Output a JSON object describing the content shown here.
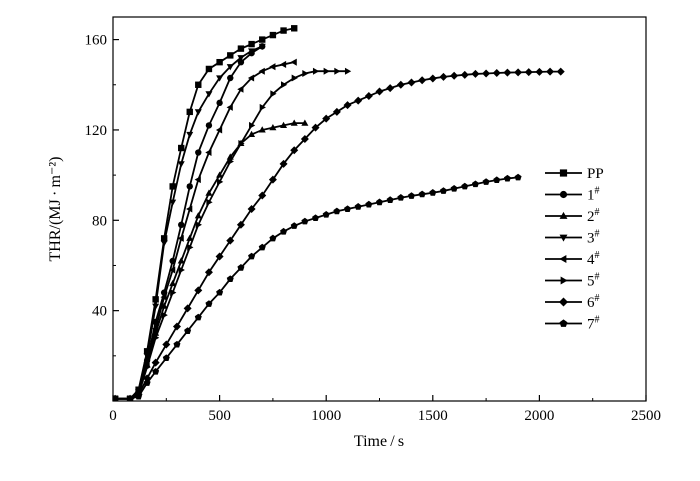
{
  "chart_data": {
    "type": "line",
    "title": "",
    "xlabel": "Time / s",
    "ylabel": "THR/(MJ · m⁻²)",
    "xlim": [
      0,
      2500
    ],
    "ylim": [
      0,
      170
    ],
    "xticks": [
      0,
      500,
      1000,
      1500,
      2000,
      2500
    ],
    "yticks": [
      40,
      80,
      120,
      160
    ],
    "grid": false,
    "legend_position": "right",
    "series": [
      {
        "name": "PP",
        "base": "PP",
        "sup": "",
        "marker": "square",
        "x": [
          10,
          80,
          120,
          160,
          200,
          240,
          280,
          320,
          360,
          400,
          450,
          500,
          550,
          600,
          650,
          700,
          750,
          800,
          850
        ],
        "y": [
          1,
          1,
          5,
          22,
          45,
          72,
          95,
          112,
          128,
          140,
          147,
          150,
          153,
          156,
          158,
          160,
          162,
          164,
          165
        ]
      },
      {
        "name": "1#",
        "base": "1",
        "sup": "#",
        "marker": "circle",
        "x": [
          10,
          80,
          120,
          160,
          200,
          240,
          280,
          320,
          360,
          400,
          450,
          500,
          550,
          600,
          650,
          700
        ],
        "y": [
          1,
          1,
          4,
          18,
          35,
          48,
          62,
          78,
          95,
          110,
          122,
          132,
          143,
          150,
          154,
          157
        ]
      },
      {
        "name": "2#",
        "base": "2",
        "sup": "#",
        "marker": "triangle-up",
        "x": [
          10,
          80,
          120,
          160,
          200,
          240,
          280,
          320,
          360,
          400,
          450,
          500,
          550,
          600,
          650,
          700,
          750,
          800,
          850,
          900
        ],
        "y": [
          1,
          1,
          4,
          16,
          30,
          42,
          52,
          62,
          72,
          82,
          92,
          100,
          108,
          114,
          118,
          120,
          121,
          122,
          123,
          123
        ]
      },
      {
        "name": "3#",
        "base": "3",
        "sup": "#",
        "marker": "triangle-down",
        "x": [
          10,
          80,
          120,
          160,
          200,
          240,
          280,
          320,
          360,
          400,
          450,
          500,
          550,
          600,
          650,
          700
        ],
        "y": [
          1,
          1,
          4,
          20,
          42,
          70,
          88,
          105,
          118,
          128,
          136,
          143,
          148,
          152,
          155,
          157
        ]
      },
      {
        "name": "4#",
        "base": "4",
        "sup": "#",
        "marker": "triangle-left",
        "x": [
          10,
          80,
          120,
          160,
          200,
          240,
          280,
          320,
          360,
          400,
          450,
          500,
          550,
          600,
          650,
          700,
          750,
          800,
          850
        ],
        "y": [
          1,
          1,
          4,
          17,
          32,
          46,
          58,
          72,
          85,
          98,
          110,
          120,
          130,
          138,
          143,
          146,
          148,
          149,
          150
        ]
      },
      {
        "name": "5#",
        "base": "5",
        "sup": "#",
        "marker": "triangle-right",
        "x": [
          10,
          80,
          120,
          160,
          200,
          240,
          280,
          320,
          360,
          400,
          450,
          500,
          550,
          600,
          650,
          700,
          750,
          800,
          850,
          900,
          950,
          1000,
          1050,
          1100
        ],
        "y": [
          1,
          1,
          3,
          15,
          28,
          38,
          48,
          58,
          68,
          78,
          88,
          97,
          106,
          114,
          122,
          130,
          136,
          140,
          143,
          145,
          146,
          146,
          146,
          146
        ]
      },
      {
        "name": "6#",
        "base": "6",
        "sup": "#",
        "marker": "diamond",
        "x": [
          10,
          80,
          120,
          160,
          200,
          250,
          300,
          350,
          400,
          450,
          500,
          550,
          600,
          650,
          700,
          750,
          800,
          850,
          900,
          950,
          1000,
          1050,
          1100,
          1150,
          1200,
          1250,
          1300,
          1350,
          1400,
          1450,
          1500,
          1550,
          1600,
          1650,
          1700,
          1750,
          1800,
          1850,
          1900,
          1950,
          2000,
          2050,
          2100
        ],
        "y": [
          1,
          1,
          3,
          10,
          17,
          25,
          33,
          41,
          49,
          57,
          64,
          71,
          78,
          85,
          91,
          98,
          105,
          111,
          116,
          121,
          125,
          128,
          131,
          133,
          135,
          137,
          138.5,
          140,
          141,
          142,
          142.8,
          143.5,
          144,
          144.4,
          144.8,
          145,
          145.2,
          145.4,
          145.5,
          145.6,
          145.7,
          145.8,
          145.8
        ]
      },
      {
        "name": "7#",
        "base": "7",
        "sup": "#",
        "marker": "pentagon",
        "x": [
          10,
          80,
          120,
          160,
          200,
          250,
          300,
          350,
          400,
          450,
          500,
          550,
          600,
          650,
          700,
          750,
          800,
          850,
          900,
          950,
          1000,
          1050,
          1100,
          1150,
          1200,
          1250,
          1300,
          1350,
          1400,
          1450,
          1500,
          1550,
          1600,
          1650,
          1700,
          1750,
          1800,
          1850,
          1900
        ],
        "y": [
          1,
          1,
          2,
          8,
          13,
          19,
          25,
          31,
          37,
          43,
          48,
          54,
          59,
          64,
          68,
          72,
          75,
          77.5,
          79.5,
          81,
          82.5,
          84,
          85,
          86,
          87,
          88,
          89,
          90,
          90.8,
          91.5,
          92.2,
          93,
          94,
          95,
          96,
          97,
          97.8,
          98.5,
          99
        ]
      }
    ]
  }
}
